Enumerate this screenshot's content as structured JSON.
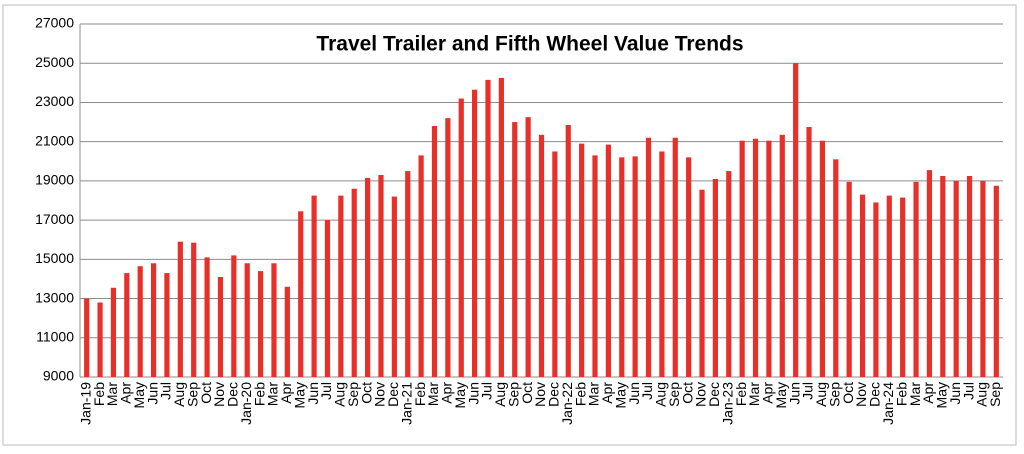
{
  "chart_data": {
    "type": "bar",
    "title": "Travel Trailer and Fifth Wheel Value Trends",
    "color": "#e8302a",
    "grid": true,
    "ylim": [
      9000,
      27000
    ],
    "yticks": [
      9000,
      11000,
      13000,
      15000,
      17000,
      19000,
      21000,
      23000,
      25000,
      27000
    ],
    "categories": [
      "Jan-19",
      "Feb",
      "Mar",
      "Apr",
      "May",
      "Jun",
      "Jul",
      "Aug",
      "Sep",
      "Oct",
      "Nov",
      "Dec",
      "Jan-20",
      "Feb",
      "Mar",
      "Apr",
      "May",
      "Jun",
      "Jul",
      "Aug",
      "Sep",
      "Oct",
      "Nov",
      "Dec",
      "Jan-21",
      "Feb",
      "Mar",
      "Apr",
      "May",
      "Jun",
      "Jul",
      "Aug",
      "Sep",
      "Oct",
      "Nov",
      "Dec",
      "Jan-22",
      "Feb",
      "Mar",
      "Apr",
      "May",
      "Jun",
      "Jul",
      "Aug",
      "Sep",
      "Oct",
      "Nov",
      "Dec",
      "Jan-23",
      "Feb",
      "Mar",
      "Apr",
      "May",
      "Jun",
      "Jul",
      "Aug",
      "Sep",
      "Oct",
      "Nov",
      "Dec",
      "Jan-24",
      "Feb",
      "Mar",
      "Apr",
      "May",
      "Jun",
      "Jul",
      "Aug",
      "Sep"
    ],
    "values": [
      13000,
      12800,
      13550,
      14300,
      14650,
      14800,
      14300,
      15900,
      15850,
      15100,
      14100,
      15200,
      14800,
      14400,
      14800,
      13600,
      17450,
      18250,
      17000,
      18250,
      18600,
      19150,
      19300,
      18200,
      19500,
      20300,
      21800,
      22200,
      23200,
      23650,
      24150,
      24250,
      22000,
      22250,
      21350,
      20500,
      21850,
      20900,
      20300,
      20850,
      20200,
      20250,
      21200,
      20500,
      21200,
      20200,
      18550,
      19100,
      19500,
      21050,
      21150,
      21050,
      21350,
      25000,
      21750,
      21050,
      20100,
      18950,
      18300,
      17900,
      18250,
      18150,
      18950,
      19550,
      19250,
      19000,
      19250,
      19000,
      18750
    ]
  }
}
